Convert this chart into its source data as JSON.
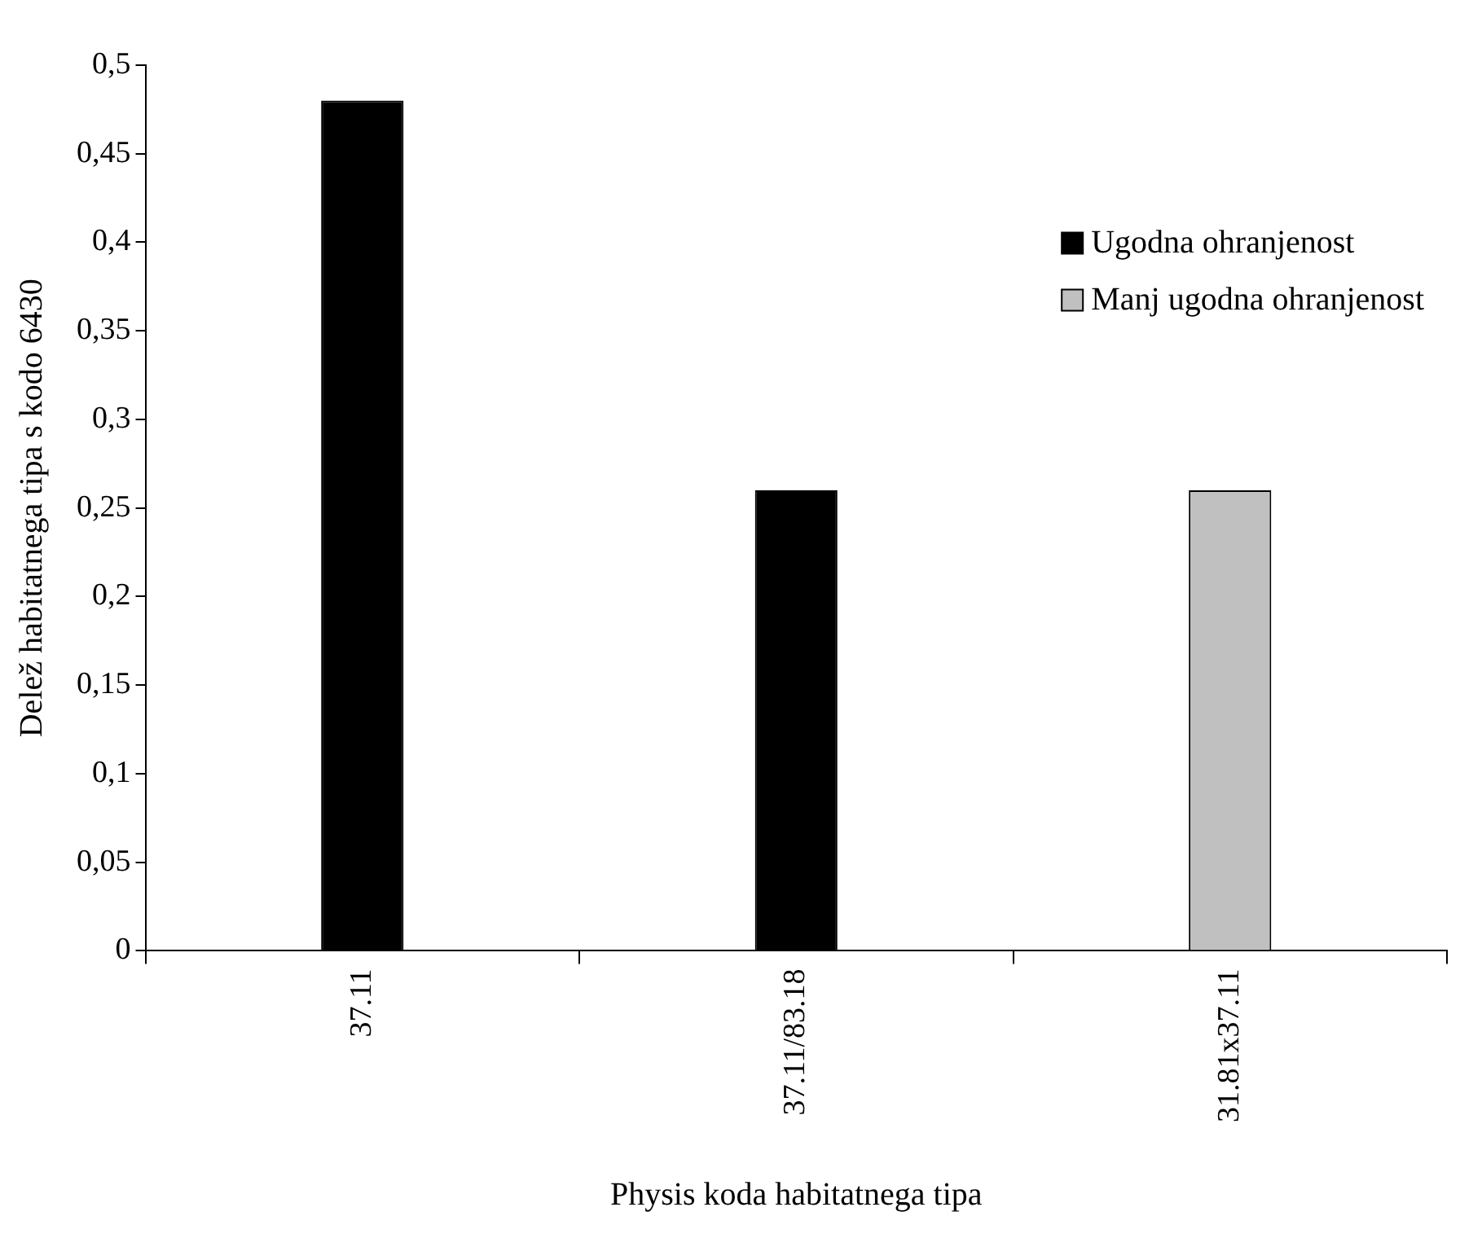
{
  "chart_data": {
    "type": "bar",
    "xlabel": "Physis koda habitatnega tipa",
    "ylabel": "Delež habitatnega tipa s kodo 6430",
    "categories": [
      "37.11",
      "37.11/83.18",
      "31.81x37.11"
    ],
    "series": [
      {
        "name": "Ugodna ohranjenost",
        "color": "#000000",
        "values": [
          0.48,
          0.26,
          null
        ]
      },
      {
        "name": "Manj ugodna ohranjenost",
        "color": "#c0c0c0",
        "values": [
          null,
          null,
          0.26
        ]
      }
    ],
    "ylim": [
      0,
      0.5
    ],
    "yticks": [
      0,
      {
        "value": 0.05,
        "label": "0,05"
      },
      {
        "value": 0.1,
        "label": "0,1"
      },
      {
        "value": 0.15,
        "label": "0,15"
      },
      {
        "value": 0.2,
        "label": "0,2"
      },
      {
        "value": 0.25,
        "label": "0,25"
      },
      {
        "value": 0.3,
        "label": "0,3"
      },
      {
        "value": 0.35,
        "label": "0,35"
      },
      {
        "value": 0.4,
        "label": "0,4"
      },
      {
        "value": 0.45,
        "label": "0,45"
      },
      {
        "value": 0.5,
        "label": "0,5"
      }
    ],
    "grid": false,
    "legend": "right"
  }
}
